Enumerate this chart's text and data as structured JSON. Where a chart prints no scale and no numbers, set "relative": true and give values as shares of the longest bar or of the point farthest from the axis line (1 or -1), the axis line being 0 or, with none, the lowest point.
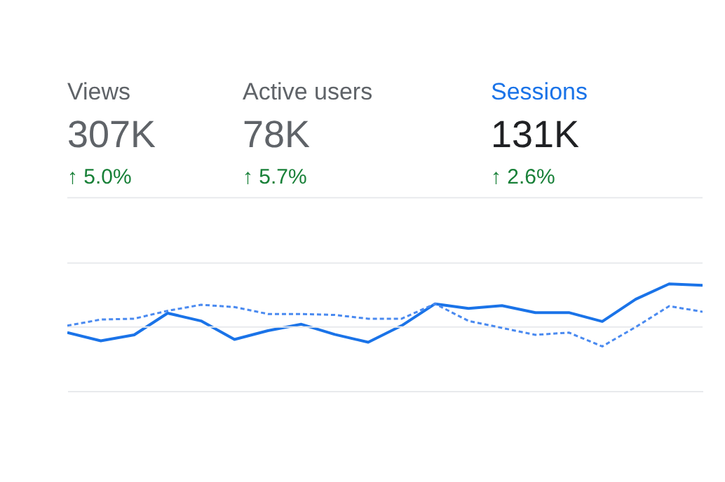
{
  "chart_data": [
    {
      "type": "other",
      "annotations": [
        "Views",
        "307K",
        "↑ 5.0%",
        "Active users",
        "78K",
        "↑ 5.7%",
        "Sessions",
        "131K",
        "↑ 2.6%"
      ]
    },
    {
      "type": "line",
      "relative": true,
      "categories": [
        null,
        null,
        null,
        null,
        null,
        null,
        null,
        null,
        null,
        null,
        null,
        null,
        null,
        null,
        null,
        null,
        null,
        null,
        null,
        null
      ],
      "ref_lines": [
        {
          "axis": "y",
          "value": 1.805,
          "color": "#e8eaed"
        },
        {
          "axis": "y",
          "value": 1.195,
          "color": "#e8eaed"
        },
        {
          "axis": "y",
          "value": 0.597,
          "color": "#e8eaed"
        }
      ],
      "series": [
        {
          "color": "#1a73e8",
          "line_style": "solid",
          "values": [
            0.545,
            0.468,
            0.524,
            0.727,
            0.654,
            0.481,
            0.563,
            0.623,
            0.528,
            0.455,
            0.61,
            0.814,
            0.771,
            0.797,
            0.732,
            0.732,
            0.649,
            0.857,
            1,
            0.987
          ]
        },
        {
          "color": "#4a8af0",
          "line_style": "dashed",
          "values": [
            0.61,
            0.667,
            0.675,
            0.749,
            0.805,
            0.784,
            0.719,
            0.719,
            0.71,
            0.675,
            0.675,
            0.814,
            0.654,
            0.589,
            0.524,
            0.545,
            0.416,
            0.597,
            0.792,
            0.74
          ]
        }
      ]
    }
  ]
}
